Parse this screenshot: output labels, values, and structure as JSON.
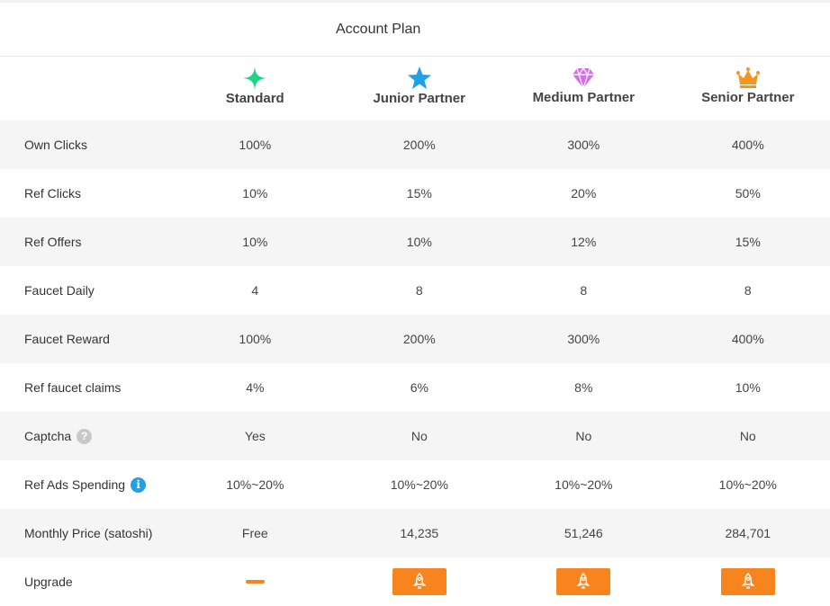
{
  "page": {
    "title": "Account Plan"
  },
  "plans": [
    {
      "name": "Standard",
      "icon": "sparkle-icon",
      "color": "#20d486"
    },
    {
      "name": "Junior Partner",
      "icon": "star-icon",
      "color": "#1ea1e6"
    },
    {
      "name": "Medium Partner",
      "icon": "diamond-icon",
      "color": "#d36ee6"
    },
    {
      "name": "Senior Partner",
      "icon": "crown-icon",
      "color": "#f7941d"
    }
  ],
  "rows": [
    {
      "label": "Own Clicks",
      "values": [
        "100%",
        "200%",
        "300%",
        "400%"
      ]
    },
    {
      "label": "Ref Clicks",
      "values": [
        "10%",
        "15%",
        "20%",
        "50%"
      ]
    },
    {
      "label": "Ref Offers",
      "values": [
        "10%",
        "10%",
        "12%",
        "15%"
      ]
    },
    {
      "label": "Faucet Daily",
      "values": [
        "4",
        "8",
        "8",
        "8"
      ]
    },
    {
      "label": "Faucet Reward",
      "values": [
        "100%",
        "200%",
        "300%",
        "400%"
      ]
    },
    {
      "label": "Ref faucet claims",
      "values": [
        "4%",
        "6%",
        "8%",
        "10%"
      ]
    },
    {
      "label": "Captcha",
      "help_icon": "?",
      "values": [
        "Yes",
        "No",
        "No",
        "No"
      ]
    },
    {
      "label": "Ref Ads Spending",
      "info_icon": "i",
      "values": [
        "10%~20%",
        "10%~20%",
        "10%~20%",
        "10%~20%"
      ]
    },
    {
      "label": "Monthly Price (satoshi)",
      "values": [
        "Free",
        "14,235",
        "51,246",
        "284,701"
      ]
    }
  ],
  "upgrade": {
    "label": "Upgrade",
    "current_plan": "Standard",
    "button_icon": "rocket-icon"
  },
  "colors": {
    "accent": "#f7841c",
    "row_shade": "#f5f5f5"
  }
}
